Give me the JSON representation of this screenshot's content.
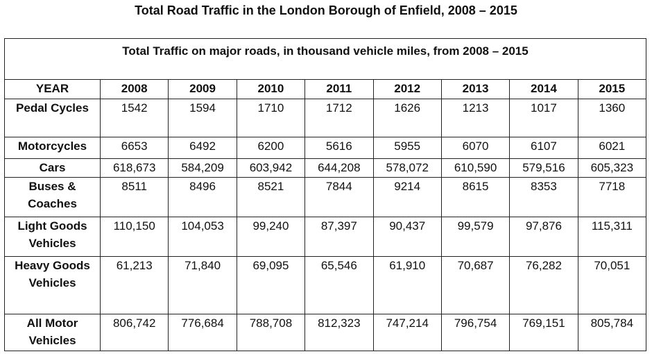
{
  "page_title": "Total Road Traffic in the London Borough of Enfield, 2008 – 2015",
  "chart_data": {
    "type": "table",
    "title": "Total Traffic on major roads, in thousand vehicle miles, from 2008 – 2015",
    "header_label": "YEAR",
    "years": [
      "2008",
      "2009",
      "2010",
      "2011",
      "2012",
      "2013",
      "2014",
      "2015"
    ],
    "rows": [
      {
        "label": "Pedal Cycles",
        "values": [
          "1542",
          "1594",
          "1710",
          "1712",
          "1626",
          "1213",
          "1017",
          "1360"
        ]
      },
      {
        "label": "Motorcycles",
        "values": [
          "6653",
          "6492",
          "6200",
          "5616",
          "5955",
          "6070",
          "6107",
          "6021"
        ]
      },
      {
        "label": "Cars",
        "values": [
          "618,673",
          "584,209",
          "603,942",
          "644,208",
          "578,072",
          "610,590",
          "579,516",
          "605,323"
        ]
      },
      {
        "label": "Buses & Coaches",
        "values": [
          "8511",
          "8496",
          "8521",
          "7844",
          "9214",
          "8615",
          "8353",
          "7718"
        ]
      },
      {
        "label": "Light Goods Vehicles",
        "values": [
          "110,150",
          "104,053",
          "99,240",
          "87,397",
          "90,437",
          "99,579",
          "97,876",
          "115,311"
        ]
      },
      {
        "label": "Heavy Goods Vehicles",
        "values": [
          "61,213",
          "71,840",
          "69,095",
          "65,546",
          "61,910",
          "70,687",
          "76,282",
          "70,051"
        ]
      },
      {
        "label": "All Motor Vehicles",
        "values": [
          "806,742",
          "776,684",
          "788,708",
          "812,323",
          "747,214",
          "796,754",
          "769,151",
          "805,784"
        ]
      }
    ]
  }
}
